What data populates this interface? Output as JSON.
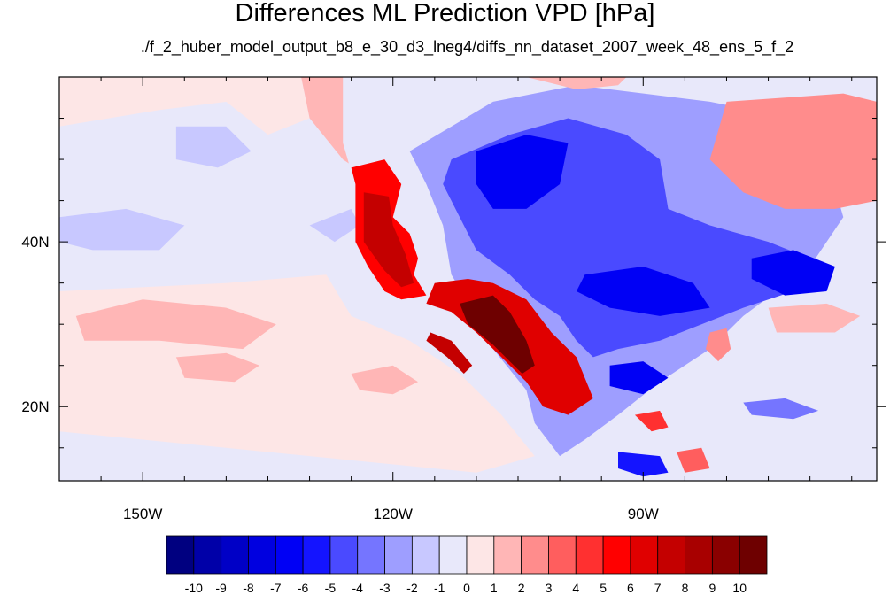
{
  "chart_data": {
    "type": "heatmap",
    "title": "Differences ML Prediction VPD [hPa]",
    "subtitle": "./f_2_huber_model_output_b8_e_30_d3_lneg4/diffs_nn_dataset_2007_week_48_ens_5_f_2",
    "units": "hPa",
    "lon_range": [
      -160,
      -62
    ],
    "lat_range": [
      11,
      60
    ],
    "x_ticks": [
      {
        "value": -150,
        "label": "150W"
      },
      {
        "value": -120,
        "label": "120W"
      },
      {
        "value": -90,
        "label": "90W"
      }
    ],
    "y_ticks": [
      {
        "value": 40,
        "label": "40N"
      },
      {
        "value": 20,
        "label": "20N"
      }
    ],
    "colorbar": {
      "levels": [
        -10,
        -9,
        -8,
        -7,
        -6,
        -5,
        -4,
        -3,
        -2,
        -1,
        0,
        1,
        2,
        3,
        4,
        5,
        6,
        7,
        8,
        9,
        10
      ],
      "labels": [
        "-10",
        "-9",
        "-8",
        "-7",
        "-6",
        "-5",
        "-4",
        "-3",
        "-2",
        "-1",
        "0",
        "1",
        "2",
        "3",
        "4",
        "5",
        "6",
        "7",
        "8",
        "9",
        "10"
      ],
      "colors": [
        "#000080",
        "#0000a8",
        "#0000c6",
        "#0000e0",
        "#0000f5",
        "#1414ff",
        "#4a4aff",
        "#7575ff",
        "#9e9eff",
        "#c8c8ff",
        "#e8e8fa",
        "#fde6e6",
        "#ffb6b6",
        "#ff8c8c",
        "#ff5e5e",
        "#ff3030",
        "#ff0000",
        "#e00000",
        "#c40000",
        "#a80000",
        "#8a0000",
        "#6e0000"
      ]
    },
    "features": [
      {
        "name": "ocean-west",
        "value": -1,
        "points": [
          [
            -160,
            60
          ],
          [
            -131,
            60
          ],
          [
            -126,
            52
          ],
          [
            -124,
            45
          ],
          [
            -124.5,
            38
          ],
          [
            -120,
            33
          ],
          [
            -115,
            28
          ],
          [
            -110,
            22
          ],
          [
            -104,
            18
          ],
          [
            -100,
            11
          ],
          [
            -160,
            11
          ]
        ]
      },
      {
        "name": "ocean-pink-north",
        "value": 0.5,
        "points": [
          [
            -160,
            54
          ],
          [
            -148,
            56
          ],
          [
            -140,
            57
          ],
          [
            -135,
            53
          ],
          [
            -130,
            55
          ],
          [
            -131,
            60
          ],
          [
            -160,
            60
          ]
        ]
      },
      {
        "name": "ocean-pink-mid",
        "value": 0.5,
        "points": [
          [
            -160,
            34
          ],
          [
            -140,
            35
          ],
          [
            -128,
            36
          ],
          [
            -125,
            31
          ],
          [
            -118,
            28
          ],
          [
            -112,
            24
          ],
          [
            -107,
            19
          ],
          [
            -103,
            14
          ],
          [
            -110,
            12
          ],
          [
            -130,
            14
          ],
          [
            -150,
            16
          ],
          [
            -160,
            17
          ]
        ]
      },
      {
        "name": "ocean-blob-1",
        "value": 1.5,
        "points": [
          [
            -158,
            31
          ],
          [
            -150,
            33
          ],
          [
            -140,
            32
          ],
          [
            -134,
            30
          ],
          [
            -138,
            27
          ],
          [
            -148,
            28
          ],
          [
            -157,
            28
          ]
        ]
      },
      {
        "name": "ocean-blob-2",
        "value": 1.5,
        "points": [
          [
            -146,
            26
          ],
          [
            -140,
            26.5
          ],
          [
            -136,
            25
          ],
          [
            -139,
            23
          ],
          [
            -145,
            23.5
          ]
        ]
      },
      {
        "name": "ocean-blob-3",
        "value": 1.5,
        "points": [
          [
            -125,
            24
          ],
          [
            -120,
            25
          ],
          [
            -117,
            23
          ],
          [
            -120,
            21.5
          ],
          [
            -124,
            22
          ]
        ]
      },
      {
        "name": "ocean-blue-1",
        "value": -2,
        "points": [
          [
            -160,
            43
          ],
          [
            -152,
            44
          ],
          [
            -145,
            42
          ],
          [
            -148,
            39
          ],
          [
            -156,
            39
          ],
          [
            -160,
            40
          ]
        ]
      },
      {
        "name": "ocean-blue-2",
        "value": -2,
        "points": [
          [
            -146,
            54
          ],
          [
            -140,
            54
          ],
          [
            -137,
            51
          ],
          [
            -141,
            49
          ],
          [
            -146,
            50
          ]
        ]
      },
      {
        "name": "ocean-blue-3",
        "value": -2,
        "points": [
          [
            -125,
            44
          ],
          [
            -124,
            42
          ],
          [
            -127,
            40
          ],
          [
            -130,
            42
          ]
        ]
      },
      {
        "name": "nw-red",
        "value": 1.5,
        "points": [
          [
            -131,
            60
          ],
          [
            -126,
            60
          ],
          [
            -118,
            58
          ],
          [
            -112,
            56
          ],
          [
            -113,
            52
          ],
          [
            -118,
            49
          ],
          [
            -123,
            48
          ],
          [
            -126,
            50
          ],
          [
            -130,
            55
          ]
        ]
      },
      {
        "name": "land-mix",
        "value": -1,
        "points": [
          [
            -126,
            60
          ],
          [
            -108,
            60
          ],
          [
            -95,
            60
          ],
          [
            -75,
            60
          ],
          [
            -65,
            57
          ],
          [
            -62,
            50
          ],
          [
            -62,
            40
          ],
          [
            -68,
            36
          ],
          [
            -75,
            30
          ],
          [
            -80,
            25
          ],
          [
            -82,
            23
          ],
          [
            -88,
            20
          ],
          [
            -92,
            15
          ],
          [
            -100,
            11
          ],
          [
            -104,
            18
          ],
          [
            -110,
            22
          ],
          [
            -115,
            28
          ],
          [
            -120,
            33
          ],
          [
            -124.5,
            38
          ],
          [
            -124,
            45
          ],
          [
            -126,
            52
          ]
        ]
      },
      {
        "name": "land-blue-big",
        "value": -3,
        "points": [
          [
            -118,
            51
          ],
          [
            -108,
            57
          ],
          [
            -98,
            59
          ],
          [
            -82,
            57
          ],
          [
            -72,
            55
          ],
          [
            -68,
            50
          ],
          [
            -66,
            43
          ],
          [
            -70,
            37
          ],
          [
            -78,
            31
          ],
          [
            -82,
            27
          ],
          [
            -88,
            23
          ],
          [
            -93,
            19
          ],
          [
            -97,
            16
          ],
          [
            -100,
            14
          ],
          [
            -103,
            18
          ],
          [
            -104,
            22
          ],
          [
            -108,
            27
          ],
          [
            -110,
            31
          ],
          [
            -113,
            36
          ],
          [
            -114,
            42
          ],
          [
            -116,
            47
          ]
        ]
      },
      {
        "name": "land-blue-core",
        "value": -5,
        "points": [
          [
            -113,
            50
          ],
          [
            -106,
            53
          ],
          [
            -99,
            55
          ],
          [
            -92,
            53
          ],
          [
            -88,
            50
          ],
          [
            -87,
            44
          ],
          [
            -82,
            42
          ],
          [
            -75,
            40
          ],
          [
            -70,
            38
          ],
          [
            -72,
            34
          ],
          [
            -78,
            32
          ],
          [
            -83,
            30
          ],
          [
            -88,
            28
          ],
          [
            -93,
            27
          ],
          [
            -96,
            26
          ],
          [
            -98,
            28
          ],
          [
            -100,
            31
          ],
          [
            -103,
            33
          ],
          [
            -106,
            36
          ],
          [
            -110,
            39
          ],
          [
            -112,
            43
          ],
          [
            -114,
            47
          ]
        ]
      },
      {
        "name": "blue-deep-1",
        "value": -7,
        "points": [
          [
            -110,
            51
          ],
          [
            -104,
            53
          ],
          [
            -99,
            52
          ],
          [
            -100,
            47
          ],
          [
            -104,
            44
          ],
          [
            -108,
            44
          ],
          [
            -110,
            47
          ]
        ]
      },
      {
        "name": "blue-deep-2",
        "value": -7,
        "points": [
          [
            -97,
            36
          ],
          [
            -90,
            37
          ],
          [
            -84,
            35
          ],
          [
            -82,
            32
          ],
          [
            -88,
            31
          ],
          [
            -94,
            32
          ],
          [
            -98,
            34
          ]
        ]
      },
      {
        "name": "blue-deep-3",
        "value": -7,
        "points": [
          [
            -77,
            38
          ],
          [
            -72,
            39
          ],
          [
            -67,
            37
          ],
          [
            -68,
            34
          ],
          [
            -73,
            33.5
          ],
          [
            -77,
            35.5
          ]
        ]
      },
      {
        "name": "blue-deep-4",
        "value": -7,
        "points": [
          [
            -94,
            25
          ],
          [
            -90,
            25.5
          ],
          [
            -87,
            23.5
          ],
          [
            -90,
            21.5
          ],
          [
            -94,
            22.5
          ]
        ]
      },
      {
        "name": "west-red",
        "value": 5,
        "points": [
          [
            -125,
            49
          ],
          [
            -121,
            50
          ],
          [
            -119,
            47
          ],
          [
            -120,
            43
          ],
          [
            -118,
            41
          ],
          [
            -117,
            38
          ],
          [
            -117.5,
            36
          ],
          [
            -116,
            33.5
          ],
          [
            -119,
            33
          ],
          [
            -121,
            34
          ],
          [
            -123,
            37
          ],
          [
            -124.5,
            40
          ],
          [
            -124.5,
            44
          ],
          [
            -124.5,
            47
          ]
        ]
      },
      {
        "name": "west-red-deep",
        "value": 7,
        "points": [
          [
            -123.5,
            46
          ],
          [
            -120.5,
            45.5
          ],
          [
            -120,
            42
          ],
          [
            -118.5,
            38.5
          ],
          [
            -117.5,
            35
          ],
          [
            -119,
            34.5
          ],
          [
            -121,
            36.5
          ],
          [
            -123.5,
            40
          ]
        ]
      },
      {
        "name": "sw-red",
        "value": 6,
        "points": [
          [
            -115,
            35
          ],
          [
            -111,
            35.5
          ],
          [
            -108,
            35
          ],
          [
            -104,
            33
          ],
          [
            -101,
            29
          ],
          [
            -98,
            26
          ],
          [
            -96,
            21
          ],
          [
            -99,
            19
          ],
          [
            -102,
            20
          ],
          [
            -104,
            23
          ],
          [
            -107,
            26
          ],
          [
            -110,
            29
          ],
          [
            -113,
            31.5
          ],
          [
            -116,
            32.5
          ]
        ]
      },
      {
        "name": "sw-maroon",
        "value": 10,
        "points": [
          [
            -112,
            32.5
          ],
          [
            -108,
            33.5
          ],
          [
            -106,
            31.5
          ],
          [
            -104,
            28
          ],
          [
            -103,
            25
          ],
          [
            -104.5,
            24
          ],
          [
            -106,
            25.5
          ],
          [
            -108,
            27.5
          ],
          [
            -111,
            30
          ]
        ]
      },
      {
        "name": "baja-red",
        "value": 7,
        "points": [
          [
            -115.5,
            29
          ],
          [
            -113,
            28
          ],
          [
            -110.5,
            25
          ],
          [
            -111.5,
            24
          ],
          [
            -113.5,
            26
          ],
          [
            -116,
            28
          ]
        ]
      },
      {
        "name": "ne-red",
        "value": 4,
        "points": [
          [
            -74,
            55
          ],
          [
            -66,
            56
          ],
          [
            -62,
            54.5
          ],
          [
            -62,
            48
          ],
          [
            -66,
            46
          ],
          [
            -72,
            47
          ],
          [
            -76,
            49
          ],
          [
            -78,
            52
          ]
        ]
      },
      {
        "name": "ne-pink",
        "value": 2,
        "points": [
          [
            -80,
            57
          ],
          [
            -66,
            58
          ],
          [
            -62,
            57
          ],
          [
            -62,
            45
          ],
          [
            -67,
            44
          ],
          [
            -73,
            44
          ],
          [
            -78,
            46
          ],
          [
            -82,
            50
          ]
        ]
      },
      {
        "name": "canada-pink",
        "value": 1.5,
        "points": [
          [
            -104,
            60
          ],
          [
            -98,
            58.5
          ],
          [
            -93,
            59
          ],
          [
            -92,
            60
          ]
        ]
      },
      {
        "name": "se-pink-1",
        "value": 1.5,
        "points": [
          [
            -75,
            32
          ],
          [
            -68,
            32.5
          ],
          [
            -64,
            31
          ],
          [
            -67,
            29
          ],
          [
            -74,
            29
          ]
        ]
      },
      {
        "name": "se-pink-2",
        "value": 2,
        "points": [
          [
            -82,
            29
          ],
          [
            -80,
            29.5
          ],
          [
            -79.5,
            27
          ],
          [
            -81,
            25.5
          ],
          [
            -82.5,
            27
          ]
        ]
      },
      {
        "name": "carib-blue",
        "value": -4,
        "points": [
          [
            -78,
            20.5
          ],
          [
            -73,
            21
          ],
          [
            -69,
            19.5
          ],
          [
            -72,
            18.5
          ],
          [
            -77,
            19
          ]
        ]
      },
      {
        "name": "yucatan-red",
        "value": 4,
        "points": [
          [
            -91,
            19
          ],
          [
            -88,
            19.5
          ],
          [
            -87,
            17.5
          ],
          [
            -89,
            17
          ]
        ]
      },
      {
        "name": "central-am-red",
        "value": 3,
        "points": [
          [
            -86,
            14.5
          ],
          [
            -83,
            15
          ],
          [
            -82,
            12.5
          ],
          [
            -85,
            12
          ]
        ]
      },
      {
        "name": "central-am-blue",
        "value": -6,
        "points": [
          [
            -93,
            14.5
          ],
          [
            -88,
            14
          ],
          [
            -87,
            12
          ],
          [
            -90,
            11.5
          ],
          [
            -93,
            12.5
          ]
        ]
      }
    ]
  }
}
